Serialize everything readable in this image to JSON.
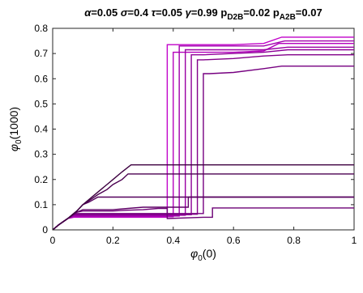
{
  "chart_data": {
    "type": "line",
    "title_parts": [
      {
        "text": "α",
        "role": "greek"
      },
      {
        "text": "=0.05 ",
        "role": "normal"
      },
      {
        "text": "σ",
        "role": "greek"
      },
      {
        "text": "=0.4 ",
        "role": "normal"
      },
      {
        "text": "τ",
        "role": "greek"
      },
      {
        "text": "=0.05 ",
        "role": "normal"
      },
      {
        "text": "γ",
        "role": "greek"
      },
      {
        "text": "=0.99 p",
        "role": "normal"
      },
      {
        "text": "D2B",
        "role": "sub"
      },
      {
        "text": "=0.02 p",
        "role": "normal"
      },
      {
        "text": "A2B",
        "role": "sub"
      },
      {
        "text": "=0.07",
        "role": "normal"
      }
    ],
    "xlabel": {
      "main": "φ",
      "sub": "0",
      "suffix": "(0)"
    },
    "ylabel": {
      "main": "φ",
      "sub": "0",
      "suffix": "(1000)"
    },
    "xlim": [
      0,
      1
    ],
    "ylim": [
      0,
      0.8
    ],
    "xticks": [
      0,
      0.2,
      0.4,
      0.6,
      0.8,
      1
    ],
    "xtick_labels": [
      "0",
      "0.2",
      "0.4",
      "0.6",
      "0.8",
      "1"
    ],
    "yticks": [
      0,
      0.1,
      0.2,
      0.3,
      0.4,
      0.5,
      0.6,
      0.7,
      0.8
    ],
    "ytick_labels": [
      "0",
      "0.1",
      "0.2",
      "0.3",
      "0.4",
      "0.5",
      "0.6",
      "0.7",
      "0.8"
    ],
    "grid": false,
    "series_colors": [
      "#C100C9",
      "#B400BD",
      "#A100AC",
      "#9A00A4",
      "#8E0098",
      "#820089",
      "#760080",
      "#6C0075",
      "#5E0066",
      "#54005C",
      "#4B0050",
      "#3D0040"
    ],
    "series": [
      {
        "x": [
          0,
          0.02,
          0.05,
          0.07,
          0.1,
          0.15,
          0.2,
          0.25,
          0.3,
          0.35,
          0.38,
          0.38,
          0.5,
          0.6,
          0.7,
          0.76,
          0.8,
          1.0
        ],
        "y": [
          0,
          0.02,
          0.045,
          0.05,
          0.05,
          0.05,
          0.05,
          0.05,
          0.05,
          0.05,
          0.05,
          0.735,
          0.735,
          0.735,
          0.74,
          0.765,
          0.765,
          0.765
        ]
      },
      {
        "x": [
          0,
          0.02,
          0.05,
          0.07,
          0.1,
          0.15,
          0.2,
          0.25,
          0.3,
          0.35,
          0.4,
          0.4,
          0.5,
          0.6,
          0.7,
          0.75,
          0.8,
          1.0
        ],
        "y": [
          0,
          0.02,
          0.045,
          0.052,
          0.052,
          0.052,
          0.052,
          0.052,
          0.052,
          0.052,
          0.052,
          0.705,
          0.705,
          0.705,
          0.71,
          0.74,
          0.74,
          0.74
        ]
      },
      {
        "x": [
          0,
          0.02,
          0.05,
          0.07,
          0.1,
          0.15,
          0.2,
          0.25,
          0.3,
          0.35,
          0.42,
          0.42,
          0.5,
          0.6,
          0.7,
          0.77,
          0.8,
          1.0
        ],
        "y": [
          0,
          0.02,
          0.045,
          0.055,
          0.055,
          0.055,
          0.055,
          0.055,
          0.055,
          0.055,
          0.055,
          0.73,
          0.73,
          0.73,
          0.73,
          0.75,
          0.75,
          0.75
        ]
      },
      {
        "x": [
          0,
          0.02,
          0.05,
          0.07,
          0.1,
          0.15,
          0.2,
          0.25,
          0.3,
          0.35,
          0.44,
          0.44,
          0.5,
          0.6,
          0.7,
          0.78,
          0.8,
          1.0
        ],
        "y": [
          0,
          0.02,
          0.045,
          0.058,
          0.058,
          0.058,
          0.058,
          0.058,
          0.058,
          0.058,
          0.058,
          0.715,
          0.715,
          0.715,
          0.715,
          0.725,
          0.725,
          0.725
        ]
      },
      {
        "x": [
          0,
          0.02,
          0.05,
          0.07,
          0.1,
          0.15,
          0.2,
          0.25,
          0.3,
          0.35,
          0.46,
          0.46,
          0.5,
          0.6,
          0.7,
          0.78,
          0.8,
          1.0
        ],
        "y": [
          0,
          0.02,
          0.045,
          0.06,
          0.06,
          0.06,
          0.06,
          0.06,
          0.06,
          0.06,
          0.06,
          0.695,
          0.695,
          0.7,
          0.705,
          0.715,
          0.715,
          0.715
        ]
      },
      {
        "x": [
          0,
          0.02,
          0.05,
          0.07,
          0.1,
          0.15,
          0.2,
          0.25,
          0.3,
          0.35,
          0.48,
          0.48,
          0.5,
          0.6,
          0.7,
          0.78,
          0.8,
          1.0
        ],
        "y": [
          0,
          0.02,
          0.045,
          0.062,
          0.062,
          0.062,
          0.062,
          0.062,
          0.062,
          0.062,
          0.062,
          0.675,
          0.675,
          0.68,
          0.69,
          0.695,
          0.695,
          0.695
        ]
      },
      {
        "x": [
          0,
          0.02,
          0.05,
          0.07,
          0.1,
          0.15,
          0.2,
          0.25,
          0.3,
          0.35,
          0.5,
          0.5,
          0.52,
          0.6,
          0.7,
          0.76,
          0.8,
          1.0
        ],
        "y": [
          0,
          0.02,
          0.045,
          0.065,
          0.065,
          0.065,
          0.065,
          0.065,
          0.065,
          0.065,
          0.065,
          0.62,
          0.62,
          0.625,
          0.64,
          0.65,
          0.65,
          0.65
        ]
      },
      {
        "x": [
          0,
          0.02,
          0.05,
          0.08,
          0.1,
          0.15,
          0.2,
          0.25,
          0.3,
          0.35,
          0.38,
          0.38,
          0.5,
          0.53,
          0.53,
          1.0
        ],
        "y": [
          0,
          0.02,
          0.045,
          0.07,
          0.075,
          0.075,
          0.075,
          0.078,
          0.08,
          0.085,
          0.085,
          0.045,
          0.05,
          0.05,
          0.087,
          0.087
        ]
      },
      {
        "x": [
          0,
          0.02,
          0.05,
          0.08,
          0.1,
          0.15,
          0.2,
          0.25,
          0.3,
          0.35,
          0.38,
          0.45,
          0.45,
          1.0
        ],
        "y": [
          0,
          0.02,
          0.045,
          0.07,
          0.08,
          0.08,
          0.08,
          0.085,
          0.09,
          0.09,
          0.09,
          0.09,
          0.13,
          0.13
        ]
      },
      {
        "x": [
          0,
          0.02,
          0.05,
          0.08,
          0.1,
          0.12,
          0.15,
          0.2,
          0.25,
          0.3,
          0.35,
          1.0
        ],
        "y": [
          0,
          0.02,
          0.045,
          0.075,
          0.1,
          0.11,
          0.13,
          0.13,
          0.13,
          0.13,
          0.13,
          0.13
        ]
      },
      {
        "x": [
          0,
          0.02,
          0.05,
          0.08,
          0.1,
          0.12,
          0.15,
          0.18,
          0.2,
          0.23,
          0.25,
          0.3,
          0.4,
          1.0
        ],
        "y": [
          0,
          0.02,
          0.045,
          0.075,
          0.1,
          0.115,
          0.14,
          0.16,
          0.18,
          0.2,
          0.222,
          0.222,
          0.222,
          0.222
        ]
      },
      {
        "x": [
          0,
          0.02,
          0.05,
          0.08,
          0.1,
          0.12,
          0.15,
          0.18,
          0.2,
          0.23,
          0.26,
          0.3,
          0.4,
          1.0
        ],
        "y": [
          0,
          0.02,
          0.045,
          0.075,
          0.1,
          0.12,
          0.15,
          0.18,
          0.2,
          0.23,
          0.258,
          0.258,
          0.258,
          0.258
        ]
      }
    ]
  }
}
